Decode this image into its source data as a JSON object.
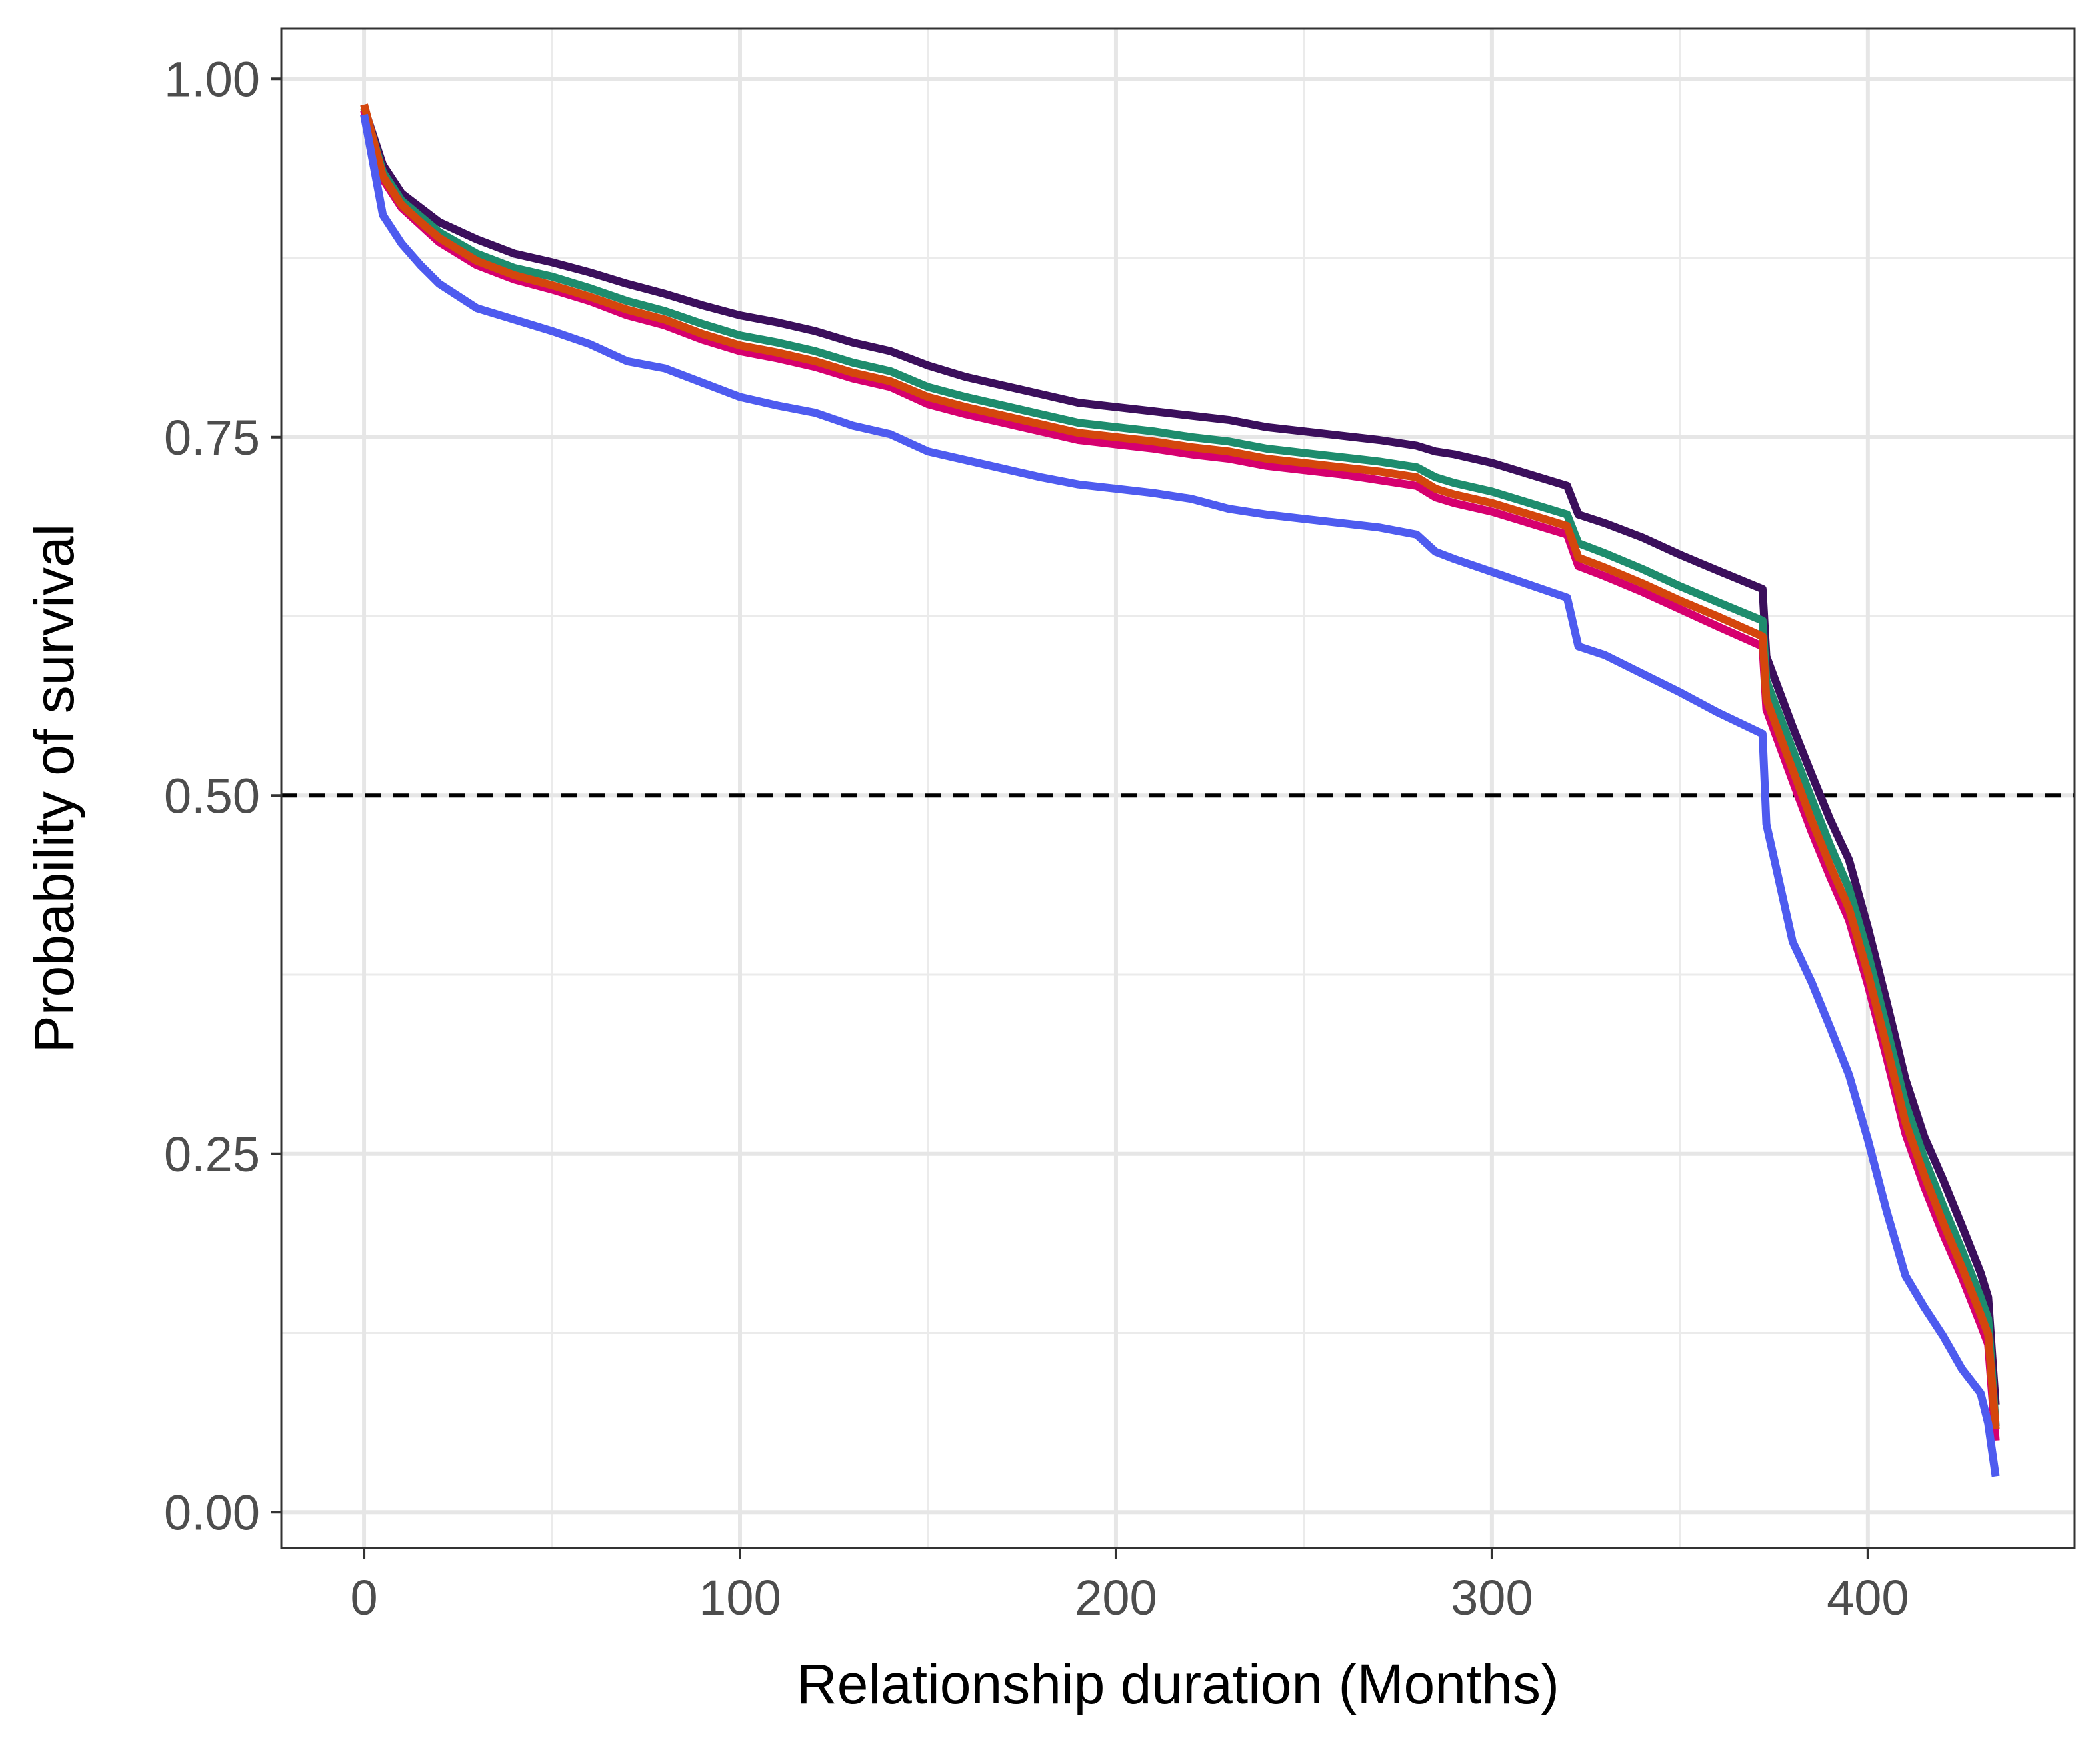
{
  "chart_data": {
    "type": "line",
    "title": "",
    "xlabel": "Relationship duration (Months)",
    "ylabel": "Probability of survival",
    "xlim": [
      -22,
      455
    ],
    "ylim": [
      -0.025,
      1.035
    ],
    "x_ticks": [
      0,
      100,
      200,
      300,
      400
    ],
    "x_tick_labels": [
      "0",
      "100",
      "200",
      "300",
      "400"
    ],
    "x_minor_ticks": [
      50,
      150,
      250,
      350
    ],
    "y_ticks": [
      0,
      0.25,
      0.5,
      0.75,
      1.0
    ],
    "y_tick_labels": [
      "0.00",
      "0.25",
      "0.50",
      "0.75",
      "1.00"
    ],
    "y_minor_ticks": [
      0.125,
      0.375,
      0.625,
      0.875
    ],
    "grid": true,
    "legend": "none",
    "reference_line": {
      "y": 0.5,
      "style": "dashed",
      "color": "#000000"
    },
    "series": [
      {
        "color": "#3B0F5C",
        "x": [
          0,
          5,
          10,
          15,
          20,
          30,
          40,
          50,
          60,
          70,
          80,
          90,
          100,
          110,
          120,
          130,
          140,
          150,
          160,
          170,
          180,
          190,
          200,
          210,
          220,
          230,
          240,
          250,
          260,
          270,
          280,
          285,
          290,
          300,
          310,
          320,
          323,
          330,
          340,
          350,
          360,
          372,
          373,
          380,
          385,
          390,
          395,
          400,
          405,
          410,
          415,
          420,
          425,
          430,
          432,
          434
        ],
        "y": [
          0.98,
          0.94,
          0.92,
          0.91,
          0.9,
          0.888,
          0.878,
          0.872,
          0.865,
          0.857,
          0.85,
          0.842,
          0.835,
          0.83,
          0.824,
          0.816,
          0.81,
          0.8,
          0.792,
          0.786,
          0.78,
          0.774,
          0.771,
          0.768,
          0.765,
          0.762,
          0.757,
          0.754,
          0.751,
          0.748,
          0.744,
          0.74,
          0.738,
          0.732,
          0.724,
          0.716,
          0.696,
          0.69,
          0.68,
          0.668,
          0.657,
          0.644,
          0.597,
          0.548,
          0.515,
          0.483,
          0.455,
          0.408,
          0.356,
          0.302,
          0.262,
          0.232,
          0.2,
          0.167,
          0.15,
          0.075
        ]
      },
      {
        "color": "#1E8C6D",
        "x": [
          0,
          5,
          10,
          15,
          20,
          30,
          40,
          50,
          60,
          70,
          80,
          90,
          100,
          110,
          120,
          130,
          140,
          150,
          160,
          170,
          180,
          190,
          200,
          210,
          220,
          230,
          240,
          250,
          260,
          270,
          280,
          285,
          290,
          300,
          310,
          320,
          323,
          330,
          340,
          350,
          360,
          372,
          373,
          380,
          385,
          390,
          395,
          400,
          405,
          410,
          415,
          420,
          425,
          430,
          432,
          434
        ],
        "y": [
          0.98,
          0.935,
          0.915,
          0.904,
          0.893,
          0.878,
          0.868,
          0.862,
          0.854,
          0.845,
          0.838,
          0.829,
          0.821,
          0.816,
          0.81,
          0.802,
          0.796,
          0.785,
          0.778,
          0.772,
          0.766,
          0.76,
          0.757,
          0.754,
          0.75,
          0.747,
          0.742,
          0.739,
          0.736,
          0.733,
          0.729,
          0.722,
          0.718,
          0.712,
          0.704,
          0.696,
          0.676,
          0.669,
          0.658,
          0.646,
          0.635,
          0.622,
          0.58,
          0.532,
          0.498,
          0.465,
          0.435,
          0.39,
          0.338,
          0.285,
          0.247,
          0.214,
          0.183,
          0.15,
          0.135,
          0.06
        ]
      },
      {
        "color": "#D6006F",
        "x": [
          0,
          5,
          10,
          15,
          20,
          30,
          40,
          50,
          60,
          70,
          80,
          90,
          100,
          110,
          120,
          130,
          140,
          150,
          160,
          170,
          180,
          190,
          200,
          210,
          220,
          230,
          240,
          250,
          260,
          270,
          280,
          285,
          290,
          300,
          310,
          320,
          323,
          330,
          340,
          350,
          360,
          372,
          373,
          380,
          385,
          390,
          395,
          400,
          405,
          410,
          415,
          420,
          425,
          430,
          432,
          434
        ],
        "y": [
          0.978,
          0.93,
          0.91,
          0.898,
          0.886,
          0.87,
          0.86,
          0.853,
          0.845,
          0.835,
          0.828,
          0.818,
          0.81,
          0.805,
          0.799,
          0.791,
          0.785,
          0.773,
          0.766,
          0.76,
          0.754,
          0.748,
          0.745,
          0.742,
          0.738,
          0.735,
          0.73,
          0.727,
          0.724,
          0.72,
          0.716,
          0.708,
          0.704,
          0.698,
          0.69,
          0.682,
          0.66,
          0.653,
          0.642,
          0.63,
          0.618,
          0.604,
          0.56,
          0.51,
          0.475,
          0.443,
          0.413,
          0.368,
          0.317,
          0.264,
          0.227,
          0.194,
          0.164,
          0.131,
          0.117,
          0.05
        ]
      },
      {
        "color": "#D4460D",
        "x": [
          0,
          5,
          10,
          15,
          20,
          30,
          40,
          50,
          60,
          70,
          80,
          90,
          100,
          110,
          120,
          130,
          140,
          150,
          160,
          170,
          180,
          190,
          200,
          210,
          220,
          230,
          240,
          250,
          260,
          270,
          280,
          285,
          290,
          300,
          310,
          320,
          323,
          330,
          340,
          350,
          360,
          372,
          373,
          380,
          385,
          390,
          395,
          400,
          405,
          410,
          415,
          420,
          425,
          430,
          432,
          434
        ],
        "y": [
          0.982,
          0.932,
          0.912,
          0.9,
          0.889,
          0.873,
          0.863,
          0.856,
          0.848,
          0.839,
          0.832,
          0.822,
          0.814,
          0.809,
          0.803,
          0.795,
          0.789,
          0.778,
          0.771,
          0.765,
          0.759,
          0.753,
          0.75,
          0.747,
          0.743,
          0.74,
          0.735,
          0.732,
          0.729,
          0.726,
          0.722,
          0.714,
          0.71,
          0.704,
          0.696,
          0.688,
          0.666,
          0.659,
          0.648,
          0.636,
          0.625,
          0.611,
          0.567,
          0.518,
          0.483,
          0.451,
          0.421,
          0.376,
          0.325,
          0.272,
          0.235,
          0.202,
          0.171,
          0.138,
          0.124,
          0.058
        ]
      },
      {
        "color": "#4E5BEF",
        "x": [
          0,
          5,
          10,
          15,
          20,
          30,
          40,
          50,
          60,
          70,
          80,
          90,
          100,
          110,
          120,
          130,
          140,
          150,
          160,
          170,
          180,
          190,
          200,
          210,
          220,
          230,
          240,
          250,
          260,
          270,
          280,
          285,
          290,
          300,
          310,
          320,
          323,
          330,
          340,
          350,
          360,
          372,
          373,
          380,
          385,
          390,
          395,
          400,
          405,
          410,
          415,
          420,
          425,
          430,
          432,
          434
        ],
        "y": [
          0.975,
          0.905,
          0.885,
          0.87,
          0.857,
          0.84,
          0.832,
          0.824,
          0.815,
          0.803,
          0.798,
          0.788,
          0.778,
          0.772,
          0.767,
          0.758,
          0.752,
          0.74,
          0.734,
          0.728,
          0.722,
          0.717,
          0.714,
          0.711,
          0.707,
          0.7,
          0.696,
          0.693,
          0.69,
          0.687,
          0.682,
          0.67,
          0.665,
          0.656,
          0.647,
          0.638,
          0.604,
          0.598,
          0.585,
          0.572,
          0.558,
          0.543,
          0.48,
          0.398,
          0.37,
          0.338,
          0.305,
          0.26,
          0.21,
          0.165,
          0.143,
          0.123,
          0.1,
          0.083,
          0.062,
          0.025
        ]
      }
    ]
  }
}
